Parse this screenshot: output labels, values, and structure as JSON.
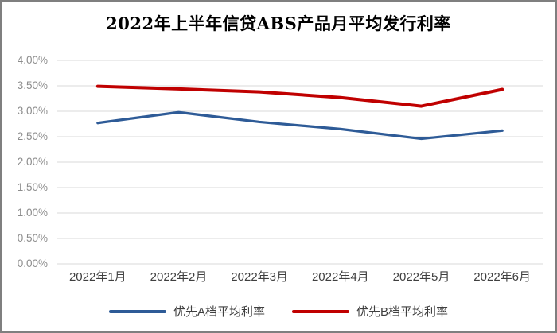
{
  "chart_data": {
    "type": "line",
    "title": "2022年上半年信贷ABS产品月平均发行利率",
    "categories": [
      "2022年1月",
      "2022年2月",
      "2022年3月",
      "2022年4月",
      "2022年5月",
      "2022年6月"
    ],
    "series": [
      {
        "name": "优先A档平均利率",
        "color": "#2e5b97",
        "values": [
          2.77,
          2.98,
          2.79,
          2.65,
          2.46,
          2.62
        ]
      },
      {
        "name": "优先B档平均利率",
        "color": "#c00000",
        "values": [
          3.49,
          3.44,
          3.38,
          3.27,
          3.1,
          3.43
        ]
      }
    ],
    "xlabel": "",
    "ylabel": "",
    "ylim": [
      0,
      4.0
    ],
    "y_tick_step": 0.5,
    "y_tick_labels": [
      "0.00%",
      "0.50%",
      "1.00%",
      "1.50%",
      "2.00%",
      "2.50%",
      "3.00%",
      "3.50%",
      "4.00%"
    ],
    "grid": "horizontal",
    "legend_position": "bottom",
    "colors": {
      "background": "#ffffff",
      "border": "#7f7f7f",
      "gridline": "#d9d9d9",
      "y_tick_text": "#8c8c8c",
      "x_tick_text": "#3f3f3f",
      "title_text": "#000000"
    }
  }
}
